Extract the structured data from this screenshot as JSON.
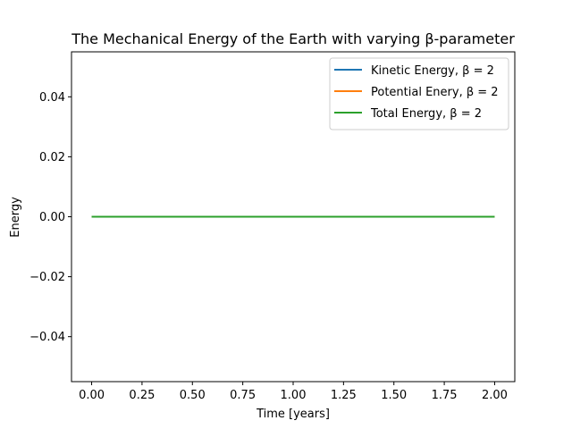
{
  "chart_data": {
    "type": "line",
    "title": "The Mechanical Energy of the Earth with varying β-parameter",
    "xlabel": "Time [years]",
    "ylabel": "Energy",
    "xlim": [
      -0.1,
      2.1
    ],
    "ylim": [
      -0.055,
      0.055
    ],
    "grid": false,
    "legend_position": "upper right",
    "x_ticks": [
      0.0,
      0.25,
      0.5,
      0.75,
      1.0,
      1.25,
      1.5,
      1.75,
      2.0
    ],
    "x_tick_labels": [
      "0.00",
      "0.25",
      "0.50",
      "0.75",
      "1.00",
      "1.25",
      "1.50",
      "1.75",
      "2.00"
    ],
    "y_ticks": [
      -0.04,
      -0.02,
      0.0,
      0.02,
      0.04
    ],
    "y_tick_labels": [
      "−0.04",
      "−0.02",
      "0.00",
      "0.02",
      "0.04"
    ],
    "x": [
      0.0,
      2.0
    ],
    "series": [
      {
        "name": "Kinetic Energy, β = 2",
        "color": "#1f77b4",
        "values": [
          0.0,
          0.0
        ]
      },
      {
        "name": "Potential Enery, β = 2",
        "color": "#ff7f0e",
        "values": [
          0.0,
          0.0
        ]
      },
      {
        "name": "Total Energy, β = 2",
        "color": "#2ca02c",
        "values": [
          0.0,
          0.0
        ]
      }
    ]
  }
}
